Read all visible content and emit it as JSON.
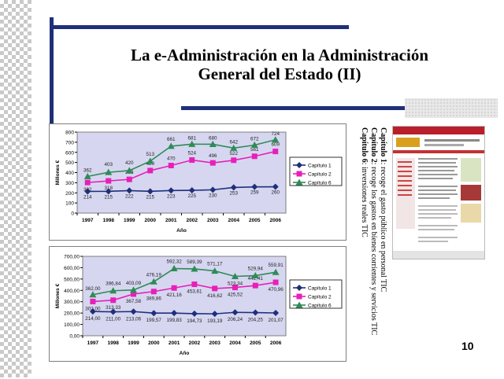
{
  "slide": {
    "title_line1": "La e-Administración en la Administración",
    "title_line2": "General del Estado (II)",
    "page_number": "10",
    "notes": [
      {
        "bold": "Capítulo 1",
        "rest": ": recoge el gasto público en personal TIC"
      },
      {
        "bold": "Capítulo 2",
        "rest": ": recoge los gastos en bienes corrientes y servicios TIC"
      },
      {
        "bold": "Capítulo 6",
        "rest": ": inversiones reales TIC"
      }
    ],
    "thumbnail": {
      "icon": "website-screenshot-thumbnail"
    }
  },
  "chart_data": [
    {
      "type": "line",
      "xlabel": "Año",
      "ylabel": "Millones €",
      "ylim": [
        0,
        800
      ],
      "yticks": [
        "0",
        "100",
        "200",
        "300",
        "400",
        "500",
        "600",
        "700",
        "800"
      ],
      "categories": [
        "1997",
        "1998",
        "1999",
        "2000",
        "2001",
        "2002",
        "2003",
        "2004",
        "2005",
        "2006"
      ],
      "legend_position": "right",
      "grid": false,
      "series": [
        {
          "name": "Capítulo 1",
          "color": "#1f2f7a",
          "marker": "diamond",
          "values": [
            214,
            215,
            222,
            215,
            223,
            225,
            230,
            253,
            259,
            260
          ],
          "labels": [
            "214",
            "215",
            "222",
            "215",
            "223",
            "225",
            "230",
            "253",
            "259",
            "260"
          ]
        },
        {
          "name": "Capítulo 2",
          "color": "#e81fb9",
          "marker": "square",
          "values": [
            302,
            318,
            333,
            420,
            470,
            524,
            496,
            522,
            561,
            609
          ],
          "labels": [
            "302",
            "318",
            "333",
            "420",
            "470",
            "524",
            "496",
            "522",
            "561",
            "609"
          ]
        },
        {
          "name": "Capítulo 6",
          "color": "#2e8b57",
          "marker": "triangle",
          "values": [
            362,
            403,
            420,
            513,
            661,
            681,
            680,
            642,
            672,
            724
          ],
          "labels": [
            "362",
            "403",
            "420",
            "513",
            "661",
            "681",
            "680",
            "642",
            "672",
            "724"
          ]
        }
      ]
    },
    {
      "type": "line",
      "xlabel": "Año",
      "ylabel": "Millones €",
      "ylim": [
        0,
        700
      ],
      "yticks": [
        "0,00",
        "100,00",
        "200,00",
        "300,00",
        "400,00",
        "500,00",
        "600,00",
        "700,00"
      ],
      "categories": [
        "1997",
        "1998",
        "1999",
        "2000",
        "2001",
        "2002",
        "2003",
        "2004",
        "2005",
        "2006"
      ],
      "legend_position": "right",
      "grid": false,
      "series": [
        {
          "name": "Capítulo 1",
          "color": "#1f2f7a",
          "marker": "diamond",
          "values": [
            214.0,
            211.0,
            213.06,
            199.57,
            199.83,
            194.73,
            193.19,
            206.24,
            204.25,
            201.07
          ],
          "labels": [
            "214,00",
            "211,00",
            "213,06",
            "199,57",
            "199,83",
            "194,73",
            "193,19",
            "206,24",
            "204,25",
            "201,07"
          ]
        },
        {
          "name": "Capítulo 2",
          "color": "#e81fb9",
          "marker": "square",
          "values": [
            302.0,
            313.33,
            367.58,
            389.86,
            421.16,
            453.61,
            416.62,
            425.52,
            442.41,
            470.96
          ],
          "labels": [
            "302,00",
            "313,33",
            "367,58",
            "389,86",
            "421,16",
            "453,61",
            "416,62",
            "425,52",
            "442,41",
            "470,96"
          ]
        },
        {
          "name": "Capítulo 6",
          "color": "#2e8b57",
          "marker": "triangle",
          "values": [
            362.0,
            396.84,
            403.09,
            476.19,
            592.32,
            589.39,
            571.17,
            523.34,
            529.94,
            559.91
          ],
          "labels": [
            "362,00",
            "396,84",
            "403,09",
            "476,19",
            "592,32",
            "589,39",
            "571,17",
            "523,34",
            "529,94",
            "559,91"
          ]
        }
      ]
    }
  ]
}
